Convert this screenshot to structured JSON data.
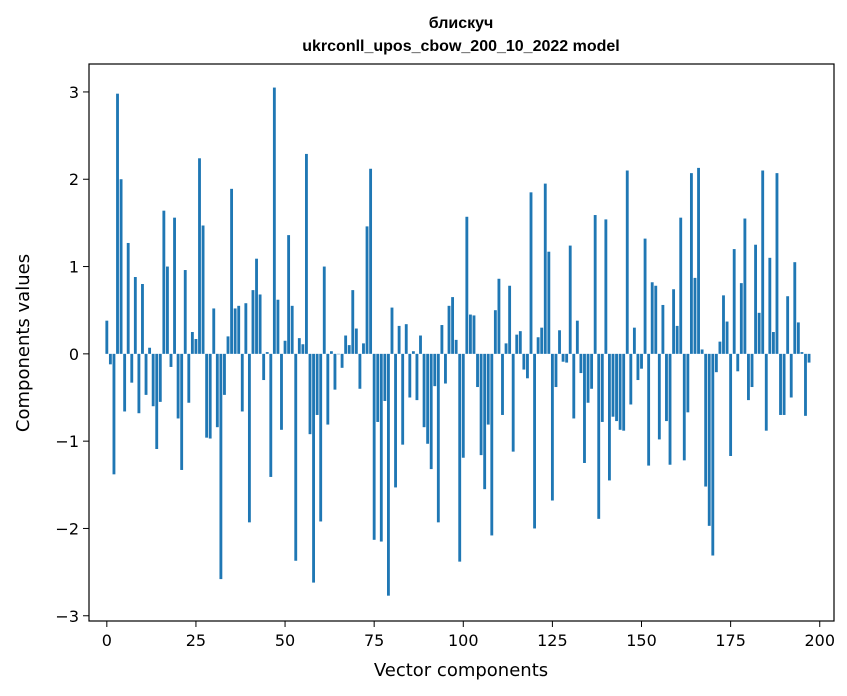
{
  "chart_data": {
    "type": "bar",
    "title": "блискуч",
    "subtitle": "ukrconll_upos_cbow_200_10_2022 model",
    "xlabel": "Vector components",
    "ylabel": "Components values",
    "xlim": [
      -5,
      204
    ],
    "ylim": [
      -3.06,
      3.32
    ],
    "xticks": [
      0,
      25,
      50,
      75,
      100,
      125,
      150,
      175,
      200
    ],
    "yticks": [
      -3,
      -2,
      -1,
      0,
      1,
      2,
      3
    ],
    "ytick_labels": [
      "−3",
      "−2",
      "−1",
      "0",
      "1",
      "2",
      "3"
    ],
    "grid": false,
    "bar_color": "#1f77b4",
    "series": [
      {
        "values": [
          0.38,
          -0.12,
          -1.38,
          2.98,
          2.0,
          -0.66,
          1.27,
          -0.33,
          0.88,
          -0.68,
          0.8,
          -0.47,
          0.07,
          -0.6,
          -1.09,
          -0.55,
          1.64,
          1.0,
          -0.15,
          1.56,
          -0.74,
          -1.33,
          0.96,
          -0.56,
          0.25,
          0.17,
          2.24,
          1.47,
          -0.96,
          -0.97,
          0.52,
          -0.84,
          -2.58,
          -0.47,
          0.2,
          1.89,
          0.52,
          0.55,
          -0.66,
          0.58,
          -1.93,
          0.73,
          1.09,
          0.68,
          -0.3,
          0.02,
          -1.41,
          3.05,
          0.62,
          -0.87,
          0.15,
          1.36,
          0.55,
          -2.37,
          0.18,
          0.11,
          2.29,
          -0.92,
          -2.62,
          -0.7,
          -1.92,
          1.0,
          -0.81,
          0.03,
          -0.41,
          0.0,
          -0.16,
          0.21,
          0.1,
          0.73,
          0.29,
          -0.4,
          0.12,
          1.46,
          2.12,
          -2.13,
          -0.78,
          -2.15,
          -0.54,
          -2.77,
          0.53,
          -1.53,
          0.32,
          -1.04,
          0.34,
          -0.5,
          0.03,
          -0.53,
          0.21,
          -0.84,
          -1.03,
          -1.32,
          -0.37,
          -1.93,
          0.33,
          -0.34,
          0.55,
          0.65,
          0.16,
          -2.38,
          -1.19,
          1.57,
          0.45,
          0.44,
          -0.38,
          -1.16,
          -1.55,
          -0.81,
          -2.08,
          0.5,
          0.86,
          -0.7,
          0.12,
          0.78,
          -1.12,
          0.22,
          0.26,
          -0.18,
          -0.28,
          1.85,
          -2.0,
          0.19,
          0.3,
          1.95,
          1.17,
          -1.68,
          -0.38,
          0.27,
          -0.09,
          -0.1,
          1.24,
          -0.74,
          0.38,
          -0.22,
          -1.25,
          -0.56,
          -0.4,
          1.59,
          -1.89,
          -0.78,
          1.54,
          -1.45,
          -0.72,
          -0.77,
          -0.87,
          -0.88,
          2.1,
          -0.58,
          0.3,
          -0.3,
          -0.17,
          1.32,
          -1.28,
          0.82,
          0.78,
          -0.98,
          0.56,
          -0.77,
          -1.27,
          0.74,
          0.32,
          1.56,
          -1.22,
          -0.67,
          2.07,
          0.87,
          2.13,
          0.05,
          -1.52,
          -1.97,
          -2.31,
          -0.21,
          0.14,
          0.67,
          0.37,
          -1.17,
          1.2,
          -0.2,
          0.81,
          1.55,
          -0.53,
          -0.38,
          1.25,
          0.47,
          2.1,
          -0.88,
          1.1,
          0.25,
          2.07,
          -0.7,
          -0.7,
          0.66,
          -0.5,
          1.05,
          0.36,
          0.02,
          -0.71,
          -0.1
        ]
      }
    ]
  }
}
